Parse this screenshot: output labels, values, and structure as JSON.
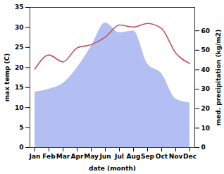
{
  "chart_data": {
    "type": "line",
    "xlabel": "date (month)",
    "ylabel": "max temp (C)",
    "y2label": "med. precipitation (kg/m2)",
    "categories": [
      "Jan",
      "Feb",
      "Mar",
      "Apr",
      "May",
      "Jun",
      "Jul",
      "Aug",
      "Sep",
      "Oct",
      "Nov",
      "Dec"
    ],
    "series": [
      {
        "type": "area",
        "axis": "y2",
        "color": "#b3bef2",
        "values": [
          28.5,
          30,
          33,
          41,
          52,
          64,
          59,
          60,
          43,
          38,
          25,
          23
        ]
      },
      {
        "type": "line",
        "color": "#c4525a",
        "values": [
          19.6,
          23.1,
          21.4,
          24.9,
          25.7,
          27.6,
          30.6,
          30.1,
          31.0,
          29.7,
          23.6,
          21.0
        ]
      }
    ],
    "ylim": [
      0,
      35
    ],
    "yticks": [
      0,
      5,
      10,
      15,
      20,
      25,
      30,
      35
    ],
    "y2lim": [
      0,
      72
    ],
    "y2ticks": [
      0,
      10,
      20,
      30,
      40,
      50,
      60
    ],
    "grid": false
  }
}
